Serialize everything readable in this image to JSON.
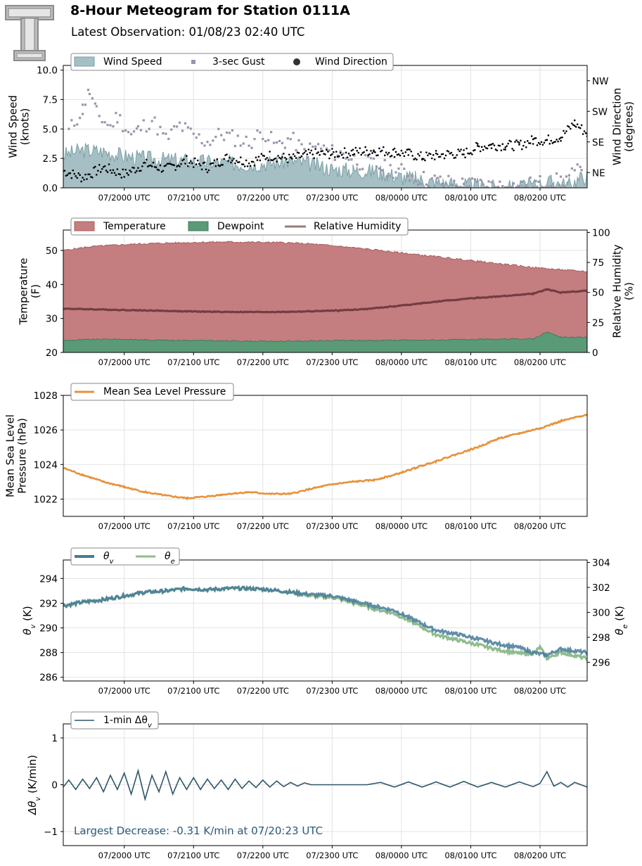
{
  "header": {
    "title": "8-Hour Meteogram for Station 0111A",
    "subtitle": "Latest Observation: 01/08/23 02:40 UTC",
    "logo": "tt-logo",
    "logo_mark": "T"
  },
  "colors": {
    "wind_fill": "#a5bfc4",
    "wind_edge": "#7b9fa6",
    "gust": "#9d93ab",
    "direction": "#000000",
    "temperature": "#c47e7f",
    "temperature_edge": "#a65e61",
    "dewpoint": "#5b9a77",
    "dewpoint_edge": "#3f7a58",
    "rh": "#733d42",
    "pressure": "#e8913b",
    "theta_v": "#457a99",
    "theta_e": "#8fbc8f",
    "dtheta": "#2f5668",
    "annotation": "#2c5b77",
    "grid": "#e3e3e3"
  },
  "chart_data": [
    {
      "type": "area",
      "title": "",
      "xlabel": "",
      "ylabel": "Wind Speed\n(knots)",
      "y2label": "Wind Direction\n(degrees)",
      "ylim": [
        0,
        10.4
      ],
      "y2lim": [
        0,
        360
      ],
      "yticks": [
        "0.0",
        "2.5",
        "5.0",
        "7.5",
        "10.0"
      ],
      "ytick_values": [
        0,
        2.5,
        5,
        7.5,
        10
      ],
      "y2ticks": [
        "NE",
        "SE",
        "SW",
        "NW"
      ],
      "y2tick_values": [
        45,
        135,
        225,
        315
      ],
      "xticks": [
        "07/2000 UTC",
        "07/2100 UTC",
        "07/2200 UTC",
        "07/2300 UTC",
        "08/0000 UTC",
        "08/0100 UTC",
        "08/0200 UTC"
      ],
      "xtick_hours": [
        1.1,
        2.1,
        3.1,
        4.1,
        5.1,
        6.1,
        7.1
      ],
      "xlim_hours": [
        0.22,
        7.78
      ],
      "legend": [
        "Wind Speed",
        "3-sec Gust",
        "Wind Direction"
      ],
      "legend_position": "top-left",
      "series": [
        {
          "name": "Wind Speed",
          "kind": "area",
          "x_hours": [
            0.22,
            0.5,
            0.8,
            1.1,
            1.4,
            1.7,
            2.0,
            2.3,
            2.6,
            2.9,
            3.2,
            3.5,
            3.8,
            4.1,
            4.4,
            4.7,
            4.9,
            5.1,
            5.3,
            5.5,
            5.7,
            5.9,
            6.1,
            6.3,
            6.5,
            6.7,
            6.9,
            7.1,
            7.3,
            7.5,
            7.78
          ],
          "values": [
            2.8,
            3.2,
            3.1,
            2.7,
            2.5,
            2.4,
            2.3,
            2.2,
            2.1,
            2.0,
            2.1,
            2.3,
            2.0,
            1.6,
            1.5,
            1.4,
            1.2,
            0.9,
            0.8,
            0.5,
            0.4,
            0.3,
            0.2,
            0.1,
            0.0,
            0.0,
            0.1,
            0.3,
            0.5,
            0.2,
            1.1
          ]
        },
        {
          "name": "3-sec Gust",
          "kind": "scatter",
          "x_hours": [
            0.3,
            0.5,
            0.6,
            0.7,
            0.9,
            1.0,
            1.2,
            1.3,
            1.5,
            1.7,
            1.9,
            2.1,
            2.3,
            2.5,
            2.7,
            2.9,
            3.1,
            3.3,
            3.5,
            3.7,
            3.9,
            4.1,
            4.3,
            4.5,
            4.7,
            4.9,
            5.1,
            5.3,
            5.5,
            5.7,
            6.0,
            6.4,
            6.8,
            7.1,
            7.4,
            7.7
          ],
          "values": [
            4.8,
            6.7,
            8.2,
            6.3,
            5.2,
            6.1,
            4.5,
            4.9,
            5.8,
            4.1,
            5.3,
            4.4,
            3.9,
            4.6,
            4.2,
            3.8,
            4.8,
            3.6,
            4.2,
            3.1,
            3.5,
            3.0,
            2.8,
            2.2,
            2.0,
            1.6,
            1.4,
            0.9,
            0.7,
            0.5,
            0.3,
            0.2,
            0.1,
            0.4,
            0.6,
            1.5
          ]
        },
        {
          "name": "Wind Direction",
          "kind": "scatter",
          "axis": "right",
          "x_hours": [
            0.22,
            0.5,
            0.8,
            1.1,
            1.4,
            1.7,
            2.0,
            2.3,
            2.6,
            2.9,
            3.2,
            3.5,
            3.8,
            4.1,
            4.4,
            4.7,
            5.0,
            5.2,
            5.4,
            5.6,
            5.8,
            6.0,
            6.2,
            6.4,
            6.6,
            6.8,
            7.0,
            7.2,
            7.4,
            7.6,
            7.78
          ],
          "values": [
            50,
            30,
            60,
            40,
            70,
            55,
            80,
            60,
            90,
            75,
            95,
            85,
            100,
            100,
            105,
            110,
            105,
            100,
            90,
            95,
            100,
            100,
            120,
            125,
            125,
            125,
            140,
            140,
            150,
            190,
            160
          ]
        }
      ]
    },
    {
      "type": "area",
      "title": "",
      "xlabel": "",
      "ylabel": "Temperature\n(F)",
      "y2label": "Relative Humidity\n(%)",
      "ylim": [
        20,
        56
      ],
      "y2lim": [
        0,
        102
      ],
      "yticks": [
        "20",
        "30",
        "40",
        "50"
      ],
      "ytick_values": [
        20,
        30,
        40,
        50
      ],
      "y2ticks": [
        "0",
        "25",
        "50",
        "75",
        "100"
      ],
      "y2tick_values": [
        0,
        25,
        50,
        75,
        100
      ],
      "xticks": [
        "07/2000 UTC",
        "07/2100 UTC",
        "07/2200 UTC",
        "07/2300 UTC",
        "08/0000 UTC",
        "08/0100 UTC",
        "08/0200 UTC"
      ],
      "xtick_hours": [
        1.1,
        2.1,
        3.1,
        4.1,
        5.1,
        6.1,
        7.1
      ],
      "xlim_hours": [
        0.22,
        7.78
      ],
      "legend": [
        "Temperature",
        "Dewpoint",
        "Relative Humidity"
      ],
      "legend_position": "top-left",
      "series": [
        {
          "name": "Temperature",
          "kind": "area",
          "x_hours": [
            0.22,
            0.6,
            1.0,
            1.4,
            1.8,
            2.2,
            2.6,
            3.0,
            3.4,
            3.8,
            4.2,
            4.6,
            5.0,
            5.4,
            5.8,
            6.2,
            6.6,
            7.0,
            7.4,
            7.78
          ],
          "values": [
            50.0,
            51.1,
            51.6,
            52.0,
            52.2,
            52.4,
            52.5,
            52.4,
            52.3,
            51.9,
            51.2,
            50.4,
            49.5,
            48.6,
            47.7,
            46.8,
            45.9,
            45.0,
            44.3,
            43.8
          ]
        },
        {
          "name": "Dewpoint",
          "kind": "area",
          "x_hours": [
            0.22,
            0.6,
            1.0,
            1.4,
            1.8,
            2.2,
            2.6,
            3.0,
            3.4,
            3.8,
            4.2,
            4.6,
            5.0,
            5.4,
            5.8,
            6.2,
            6.6,
            7.0,
            7.2,
            7.4,
            7.78
          ],
          "values": [
            23.5,
            23.8,
            23.9,
            23.7,
            23.6,
            23.5,
            23.4,
            23.3,
            23.3,
            23.4,
            23.5,
            23.5,
            23.6,
            23.6,
            23.7,
            23.8,
            23.9,
            24.0,
            26.0,
            24.4,
            24.5
          ]
        },
        {
          "name": "Relative Humidity",
          "kind": "line",
          "axis": "right",
          "x_hours": [
            0.22,
            0.6,
            1.0,
            1.4,
            1.8,
            2.2,
            2.6,
            3.0,
            3.4,
            3.8,
            4.2,
            4.6,
            5.0,
            5.4,
            5.8,
            6.2,
            6.6,
            7.0,
            7.2,
            7.4,
            7.78
          ],
          "values": [
            36.5,
            36.0,
            35.5,
            35.0,
            34.5,
            34.0,
            33.8,
            33.7,
            33.8,
            34.3,
            35.0,
            36.2,
            38.5,
            41.0,
            43.5,
            45.5,
            47.0,
            49.0,
            52.5,
            50.0,
            51.5
          ]
        }
      ]
    },
    {
      "type": "line",
      "title": "",
      "xlabel": "",
      "ylabel": "Mean Sea Level\nPressure (hPa)",
      "ylim": [
        1021.0,
        1028.0
      ],
      "yticks": [
        "1022",
        "1024",
        "1026",
        "1028"
      ],
      "ytick_values": [
        1022,
        1024,
        1026,
        1028
      ],
      "xticks": [
        "07/2000 UTC",
        "07/2100 UTC",
        "07/2200 UTC",
        "07/2300 UTC",
        "08/0000 UTC",
        "08/0100 UTC",
        "08/0200 UTC"
      ],
      "xtick_hours": [
        1.1,
        2.1,
        3.1,
        4.1,
        5.1,
        6.1,
        7.1
      ],
      "xlim_hours": [
        0.22,
        7.78
      ],
      "legend": [
        "Mean Sea Level Pressure"
      ],
      "legend_position": "top-left",
      "series": [
        {
          "name": "Mean Sea Level Pressure",
          "x_hours": [
            0.22,
            0.5,
            0.8,
            1.1,
            1.4,
            1.7,
            2.0,
            2.3,
            2.6,
            2.9,
            3.2,
            3.5,
            3.8,
            4.1,
            4.4,
            4.7,
            5.0,
            5.3,
            5.6,
            5.9,
            6.2,
            6.5,
            6.8,
            7.1,
            7.4,
            7.78
          ],
          "values": [
            1023.8,
            1023.4,
            1023.0,
            1022.7,
            1022.4,
            1022.2,
            1022.05,
            1022.15,
            1022.3,
            1022.4,
            1022.3,
            1022.3,
            1022.6,
            1022.85,
            1023.0,
            1023.1,
            1023.4,
            1023.8,
            1024.2,
            1024.6,
            1025.0,
            1025.5,
            1025.8,
            1026.1,
            1026.5,
            1026.9
          ]
        }
      ]
    },
    {
      "type": "line",
      "title": "",
      "xlabel": "",
      "ylabel": "θv (K)",
      "y2label": "θe (K)",
      "ylim": [
        285.7,
        295.5
      ],
      "y2lim": [
        294.5,
        304.2
      ],
      "yticks": [
        "286",
        "288",
        "290",
        "292",
        "294"
      ],
      "ytick_values": [
        286,
        288,
        290,
        292,
        294
      ],
      "y2ticks": [
        "296",
        "298",
        "300",
        "302",
        "304"
      ],
      "y2tick_values": [
        296,
        298,
        300,
        302,
        304
      ],
      "xticks": [
        "07/2000 UTC",
        "07/2100 UTC",
        "07/2200 UTC",
        "07/2300 UTC",
        "08/0000 UTC",
        "08/0100 UTC",
        "08/0200 UTC"
      ],
      "xtick_hours": [
        1.1,
        2.1,
        3.1,
        4.1,
        5.1,
        6.1,
        7.1
      ],
      "xlim_hours": [
        0.22,
        7.78
      ],
      "legend": [
        "θv",
        "θe"
      ],
      "legend_position": "top-left",
      "series": [
        {
          "name": "θv",
          "x_hours": [
            0.22,
            0.5,
            0.8,
            1.1,
            1.4,
            1.7,
            2.0,
            2.3,
            2.6,
            2.9,
            3.2,
            3.5,
            3.8,
            4.1,
            4.4,
            4.7,
            5.0,
            5.3,
            5.6,
            5.9,
            6.2,
            6.5,
            6.8,
            7.0,
            7.2,
            7.4,
            7.78
          ],
          "values": [
            291.8,
            292.1,
            292.3,
            292.6,
            292.9,
            293.0,
            293.2,
            293.1,
            293.2,
            293.2,
            293.1,
            292.9,
            292.7,
            292.6,
            292.2,
            291.8,
            291.4,
            290.6,
            289.8,
            289.5,
            289.1,
            288.7,
            288.4,
            288.0,
            287.8,
            288.3,
            288.0
          ]
        },
        {
          "name": "θe",
          "axis": "right",
          "x_hours": [
            0.22,
            0.5,
            0.8,
            1.1,
            1.4,
            1.7,
            2.0,
            2.3,
            2.6,
            2.9,
            3.2,
            3.5,
            3.8,
            4.1,
            4.4,
            4.7,
            5.0,
            5.3,
            5.6,
            5.9,
            6.2,
            6.5,
            6.8,
            7.0,
            7.1,
            7.2,
            7.4,
            7.78
          ],
          "values": [
            300.5,
            300.8,
            301.0,
            301.3,
            301.6,
            301.7,
            301.9,
            301.8,
            301.9,
            301.9,
            301.8,
            301.6,
            301.3,
            301.2,
            300.8,
            300.3,
            299.9,
            299.1,
            298.2,
            297.8,
            297.4,
            297.0,
            296.7,
            296.7,
            297.2,
            296.3,
            296.8,
            296.3
          ]
        }
      ]
    },
    {
      "type": "line",
      "title": "",
      "xlabel": "",
      "ylabel": "Δθv (K/min)",
      "ylim": [
        -1.3,
        1.3
      ],
      "yticks": [
        "−1",
        "0",
        "1"
      ],
      "ytick_values": [
        -1,
        0,
        1
      ],
      "xticks": [
        "07/2000 UTC",
        "07/2100 UTC",
        "07/2200 UTC",
        "07/2300 UTC",
        "08/0000 UTC",
        "08/0100 UTC",
        "08/0200 UTC"
      ],
      "xtick_hours": [
        1.1,
        2.1,
        3.1,
        4.1,
        5.1,
        6.1,
        7.1
      ],
      "xlim_hours": [
        0.22,
        7.78
      ],
      "legend": [
        "1-min Δθv"
      ],
      "legend_position": "top-left",
      "annotation": "Largest Decrease: -0.31 K/min at 07/20:23 UTC",
      "series": [
        {
          "name": "1-min Δθv",
          "x_hours": [
            0.22,
            0.3,
            0.4,
            0.5,
            0.6,
            0.7,
            0.8,
            0.9,
            1.0,
            1.1,
            1.2,
            1.3,
            1.4,
            1.5,
            1.6,
            1.7,
            1.8,
            1.9,
            2.0,
            2.1,
            2.2,
            2.3,
            2.4,
            2.5,
            2.6,
            2.7,
            2.8,
            2.9,
            3.0,
            3.1,
            3.2,
            3.3,
            3.4,
            3.5,
            3.6,
            3.7,
            3.8,
            4.0,
            4.2,
            4.4,
            4.6,
            4.8,
            5.0,
            5.2,
            5.4,
            5.6,
            5.8,
            6.0,
            6.2,
            6.4,
            6.6,
            6.8,
            7.0,
            7.1,
            7.2,
            7.3,
            7.4,
            7.5,
            7.6,
            7.78
          ],
          "values": [
            -0.05,
            0.1,
            -0.1,
            0.12,
            -0.08,
            0.15,
            -0.15,
            0.2,
            -0.1,
            0.25,
            -0.2,
            0.3,
            -0.31,
            0.2,
            -0.15,
            0.28,
            -0.2,
            0.15,
            -0.1,
            0.15,
            -0.1,
            0.12,
            -0.08,
            0.1,
            -0.1,
            0.12,
            -0.08,
            0.08,
            -0.06,
            0.1,
            -0.05,
            0.08,
            -0.04,
            0.05,
            -0.03,
            0.04,
            0.0,
            0.0,
            0.0,
            0.0,
            0.0,
            0.05,
            -0.05,
            0.06,
            -0.05,
            0.06,
            -0.05,
            0.07,
            -0.05,
            0.05,
            -0.05,
            0.06,
            -0.04,
            0.03,
            0.28,
            -0.03,
            0.05,
            -0.05,
            0.05,
            -0.05
          ]
        }
      ]
    }
  ]
}
